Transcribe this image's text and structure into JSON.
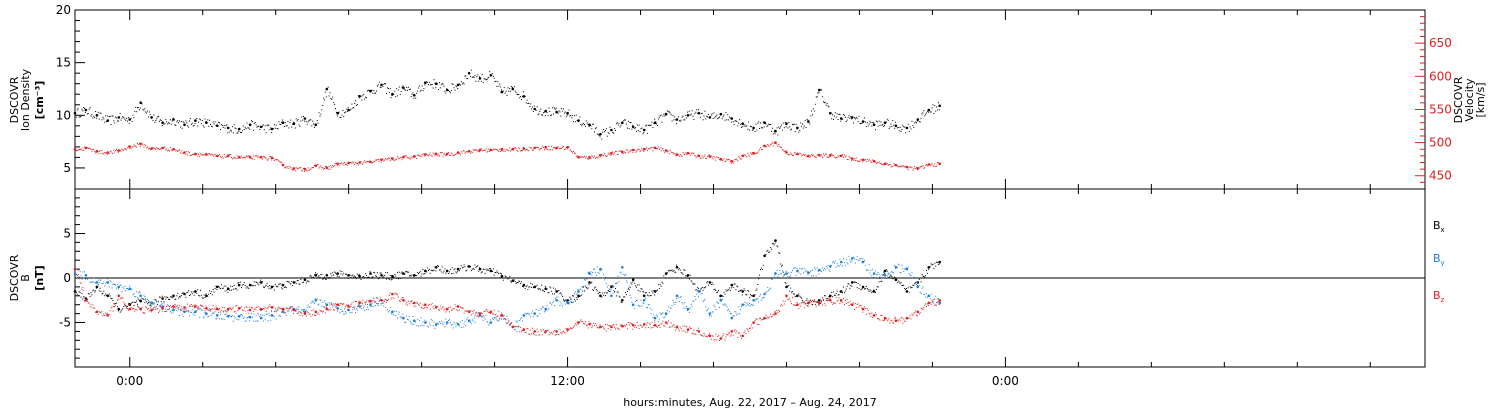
{
  "chart_data": [
    {
      "type": "scatter",
      "panel": "top",
      "ylabel_left": [
        "DSCOVR",
        "Ion Density",
        "[cm⁻³]"
      ],
      "ylabel_right": [
        "DSCOVR",
        "Velocity",
        "[km/s]"
      ],
      "ylim_left": [
        3,
        20
      ],
      "ylim_right": [
        430,
        700
      ],
      "yticks_left": [
        "20",
        "15",
        "10",
        "5"
      ],
      "yticks_right": [
        "650",
        "600",
        "550",
        "500",
        "450"
      ],
      "grid": false,
      "series": [
        {
          "axis": "left",
          "color": "#000000",
          "hours": [
            -1.5,
            -1.2,
            -0.9,
            -0.6,
            -0.3,
            0.0,
            0.3,
            0.6,
            0.9,
            1.2,
            1.5,
            1.8,
            2.1,
            2.4,
            2.7,
            3.0,
            3.3,
            3.6,
            3.9,
            4.2,
            4.5,
            4.8,
            5.1,
            5.4,
            5.7,
            6.0,
            6.3,
            6.6,
            6.9,
            7.2,
            7.5,
            7.8,
            8.1,
            8.4,
            8.7,
            9.0,
            9.3,
            9.6,
            9.9,
            10.2,
            10.5,
            10.8,
            11.1,
            11.4,
            11.7,
            12.0,
            12.3,
            12.6,
            12.9,
            13.2,
            13.5,
            13.8,
            14.1,
            14.4,
            14.7,
            15.0,
            15.3,
            15.6,
            15.9,
            16.2,
            16.5,
            16.8,
            17.1,
            17.4,
            17.7,
            18.0,
            18.3,
            18.6,
            18.9,
            19.2,
            19.5,
            19.8,
            20.1,
            20.4,
            20.7,
            21.0,
            21.3,
            21.6,
            21.9,
            22.2
          ],
          "values": [
            10.2,
            10.5,
            10.0,
            9.5,
            9.8,
            9.6,
            11.2,
            9.8,
            9.3,
            9.6,
            9.1,
            9.5,
            9.3,
            9.0,
            8.8,
            8.7,
            9.1,
            8.9,
            8.7,
            9.3,
            9.2,
            9.7,
            9.1,
            12.5,
            10.2,
            10.5,
            11.8,
            12.3,
            12.9,
            12.0,
            12.6,
            11.9,
            13.1,
            13.0,
            12.4,
            12.9,
            14.0,
            13.5,
            13.8,
            12.2,
            12.5,
            11.8,
            10.6,
            10.4,
            10.3,
            10.2,
            9.5,
            9.1,
            8.2,
            8.6,
            9.3,
            8.9,
            8.6,
            9.3,
            10.1,
            9.6,
            10.0,
            10.2,
            9.8,
            10.1,
            9.7,
            9.2,
            8.8,
            9.3,
            8.5,
            9.2,
            8.8,
            9.4,
            12.4,
            10.2,
            9.7,
            9.8,
            9.4,
            9.1,
            9.3,
            9.0,
            8.8,
            9.6,
            10.5,
            10.9
          ]
        },
        {
          "axis": "right",
          "color": "#e02020",
          "hours": [
            -1.5,
            -1.2,
            -0.9,
            -0.6,
            -0.3,
            0.0,
            0.3,
            0.6,
            0.9,
            1.2,
            1.5,
            1.8,
            2.1,
            2.4,
            2.7,
            3.0,
            3.3,
            3.6,
            3.9,
            4.2,
            4.5,
            4.8,
            5.1,
            5.4,
            5.7,
            6.0,
            6.3,
            6.6,
            6.9,
            7.2,
            7.5,
            7.8,
            8.1,
            8.4,
            8.7,
            9.0,
            9.3,
            9.6,
            9.9,
            10.2,
            10.5,
            10.8,
            11.1,
            11.4,
            11.7,
            12.0,
            12.3,
            12.6,
            12.9,
            13.2,
            13.5,
            13.8,
            14.1,
            14.4,
            14.7,
            15.0,
            15.3,
            15.6,
            15.9,
            16.2,
            16.5,
            16.8,
            17.1,
            17.4,
            17.7,
            18.0,
            18.3,
            18.6,
            18.9,
            19.2,
            19.5,
            19.8,
            20.1,
            20.4,
            20.7,
            21.0,
            21.3,
            21.6,
            21.9,
            22.2
          ],
          "values": [
            490,
            492,
            487,
            485,
            488,
            494,
            498,
            491,
            492,
            490,
            485,
            483,
            482,
            480,
            480,
            478,
            478,
            478,
            477,
            466,
            461,
            460,
            465,
            462,
            468,
            469,
            470,
            471,
            474,
            476,
            478,
            479,
            482,
            483,
            483,
            485,
            487,
            489,
            489,
            490,
            490,
            491,
            492,
            493,
            492,
            493,
            478,
            478,
            481,
            484,
            486,
            489,
            490,
            492,
            488,
            482,
            484,
            480,
            479,
            475,
            472,
            480,
            484,
            495,
            500,
            485,
            483,
            480,
            481,
            481,
            480,
            476,
            474,
            472,
            468,
            466,
            463,
            461,
            467,
            468
          ]
        }
      ]
    },
    {
      "type": "scatter",
      "panel": "bottom",
      "ylabel_left": [
        "DSCOVR",
        "B",
        "[nT]"
      ],
      "ylim": [
        -10,
        10
      ],
      "yticks": [
        "5",
        "0",
        "-5"
      ],
      "zero_line": true,
      "grid": false,
      "legend": "right",
      "series": [
        {
          "name": "Bx",
          "color": "#000000",
          "hours": [
            -1.5,
            -1.2,
            -0.9,
            -0.6,
            -0.3,
            0.0,
            0.3,
            0.6,
            0.9,
            1.2,
            1.5,
            1.8,
            2.1,
            2.4,
            2.7,
            3.0,
            3.3,
            3.6,
            3.9,
            4.2,
            4.5,
            4.8,
            5.1,
            5.4,
            5.7,
            6.0,
            6.3,
            6.6,
            6.9,
            7.2,
            7.5,
            7.8,
            8.1,
            8.4,
            8.7,
            9.0,
            9.3,
            9.6,
            9.9,
            10.2,
            10.5,
            10.8,
            11.1,
            11.4,
            11.7,
            12.0,
            12.3,
            12.6,
            12.9,
            13.2,
            13.5,
            13.8,
            14.1,
            14.4,
            14.7,
            15.0,
            15.3,
            15.6,
            15.9,
            16.2,
            16.5,
            16.8,
            17.1,
            17.4,
            17.7,
            18.0,
            18.3,
            18.6,
            18.9,
            19.2,
            19.5,
            19.8,
            20.1,
            20.4,
            20.7,
            21.0,
            21.3,
            21.6,
            21.9,
            22.2
          ],
          "values": [
            -1.5,
            -2.3,
            -1.0,
            -2.0,
            -3.5,
            -3.0,
            -2.6,
            -2.8,
            -2.3,
            -2.0,
            -1.8,
            -1.5,
            -2.0,
            -1.0,
            -1.2,
            -0.8,
            -0.8,
            -0.5,
            -1.0,
            -0.8,
            -0.5,
            -0.2,
            0.3,
            0.3,
            0.5,
            0.3,
            0.2,
            0.5,
            0.3,
            0.2,
            0.5,
            0.3,
            0.8,
            1.2,
            0.8,
            1.0,
            1.3,
            1.0,
            0.8,
            0.2,
            -0.3,
            -0.8,
            -1.0,
            -1.2,
            -1.5,
            -2.5,
            -2.0,
            -0.5,
            -2.0,
            -1.0,
            -2.5,
            -0.2,
            -2.0,
            -1.5,
            0.5,
            1.2,
            0.3,
            -1.5,
            -0.5,
            -2.0,
            -0.8,
            -1.5,
            -2.0,
            2.5,
            4.2,
            -1.0,
            -2.0,
            -2.8,
            -2.5,
            -2.0,
            -1.5,
            -0.5,
            -1.0,
            -1.5,
            0.8,
            -0.2,
            -1.5,
            -0.5,
            1.2,
            1.8
          ]
        },
        {
          "name": "By",
          "color": "#1f7fd8",
          "hours": [
            -1.5,
            -1.2,
            -0.9,
            -0.6,
            -0.3,
            0.0,
            0.3,
            0.6,
            0.9,
            1.2,
            1.5,
            1.8,
            2.1,
            2.4,
            2.7,
            3.0,
            3.3,
            3.6,
            3.9,
            4.2,
            4.5,
            4.8,
            5.1,
            5.4,
            5.7,
            6.0,
            6.3,
            6.6,
            6.9,
            7.2,
            7.5,
            7.8,
            8.1,
            8.4,
            8.7,
            9.0,
            9.3,
            9.6,
            9.9,
            10.2,
            10.5,
            10.8,
            11.1,
            11.4,
            11.7,
            12.0,
            12.3,
            12.6,
            12.9,
            13.2,
            13.5,
            13.8,
            14.1,
            14.4,
            14.7,
            15.0,
            15.3,
            15.6,
            15.9,
            16.2,
            16.5,
            16.8,
            17.1,
            17.4,
            17.7,
            18.0,
            18.3,
            18.6,
            18.9,
            19.2,
            19.5,
            19.8,
            20.1,
            20.4,
            20.7,
            21.0,
            21.3,
            21.6,
            21.9,
            22.2
          ],
          "values": [
            0.5,
            0.3,
            -0.5,
            -0.5,
            -1.0,
            -1.2,
            -2.0,
            -2.8,
            -3.2,
            -3.6,
            -3.8,
            -3.8,
            -4.0,
            -4.2,
            -4.3,
            -4.3,
            -4.4,
            -4.5,
            -4.2,
            -3.8,
            -3.5,
            -3.8,
            -2.5,
            -3.0,
            -3.4,
            -3.6,
            -3.2,
            -3.0,
            -2.5,
            -3.8,
            -4.5,
            -4.8,
            -5.0,
            -5.2,
            -5.0,
            -5.2,
            -4.8,
            -4.2,
            -5.0,
            -4.2,
            -5.5,
            -4.2,
            -4.0,
            -3.5,
            -2.5,
            -2.8,
            -1.5,
            0.5,
            1.0,
            -2.0,
            1.2,
            -3.0,
            -2.5,
            -4.5,
            -4.0,
            -2.0,
            -3.5,
            -1.5,
            -4.0,
            -2.5,
            -4.5,
            -3.0,
            -2.5,
            -1.8,
            0.5,
            0.5,
            0.8,
            0.6,
            0.9,
            1.3,
            1.8,
            2.2,
            1.8,
            0.5,
            0.3,
            1.2,
            1.0,
            -1.0,
            -2.0,
            -2.8
          ]
        },
        {
          "name": "Bz",
          "color": "#e02020",
          "hours": [
            -1.5,
            -1.2,
            -0.9,
            -0.6,
            -0.3,
            0.0,
            0.3,
            0.6,
            0.9,
            1.2,
            1.5,
            1.8,
            2.1,
            2.4,
            2.7,
            3.0,
            3.3,
            3.6,
            3.9,
            4.2,
            4.5,
            4.8,
            5.1,
            5.4,
            5.7,
            6.0,
            6.3,
            6.6,
            6.9,
            7.2,
            7.5,
            7.8,
            8.1,
            8.4,
            8.7,
            9.0,
            9.3,
            9.6,
            9.9,
            10.2,
            10.5,
            10.8,
            11.1,
            11.4,
            11.7,
            12.0,
            12.3,
            12.6,
            12.9,
            13.2,
            13.5,
            13.8,
            14.1,
            14.4,
            14.7,
            15.0,
            15.3,
            15.6,
            15.9,
            16.2,
            16.5,
            16.8,
            17.1,
            17.4,
            17.7,
            18.0,
            18.3,
            18.6,
            18.9,
            19.2,
            19.5,
            19.8,
            20.1,
            20.4,
            20.7,
            21.0,
            21.3,
            21.6,
            21.9,
            22.2
          ],
          "values": [
            1.0,
            -2.5,
            -3.8,
            -4.2,
            -2.0,
            -3.5,
            -3.5,
            -3.6,
            -3.4,
            -3.2,
            -3.3,
            -3.2,
            -3.4,
            -3.5,
            -3.5,
            -3.4,
            -3.6,
            -3.5,
            -3.3,
            -3.5,
            -3.6,
            -4.0,
            -3.8,
            -3.5,
            -3.0,
            -3.2,
            -2.8,
            -2.6,
            -2.5,
            -1.8,
            -2.5,
            -2.8,
            -3.0,
            -3.3,
            -3.5,
            -3.2,
            -3.8,
            -4.0,
            -3.8,
            -4.2,
            -5.5,
            -5.8,
            -6.0,
            -6.0,
            -6.0,
            -5.8,
            -5.0,
            -5.2,
            -5.5,
            -5.5,
            -5.4,
            -5.3,
            -5.2,
            -5.3,
            -5.0,
            -5.5,
            -5.8,
            -6.0,
            -6.5,
            -6.8,
            -6.0,
            -6.5,
            -5.0,
            -4.5,
            -4.0,
            -2.0,
            -3.0,
            -2.8,
            -2.8,
            -2.5,
            -2.5,
            -3.0,
            -3.5,
            -4.2,
            -4.5,
            -4.8,
            -4.5,
            -3.8,
            -2.8,
            -2.5
          ]
        }
      ]
    }
  ],
  "x_axis": {
    "range_hours": [
      -1.5,
      35.5
    ],
    "tick_labels": [
      {
        "hour": 0,
        "label": "0:00"
      },
      {
        "hour": 12,
        "label": "12:00"
      },
      {
        "hour": 24,
        "label": "0:00"
      }
    ],
    "minor_tick_step_hours": 2,
    "label": "hours:minutes, Aug. 22, 2017 – Aug. 24, 2017"
  },
  "legend": {
    "bx_main": "B",
    "bx_sub": "x",
    "by_main": "B",
    "by_sub": "y",
    "bz_main": "B",
    "bz_sub": "z"
  }
}
